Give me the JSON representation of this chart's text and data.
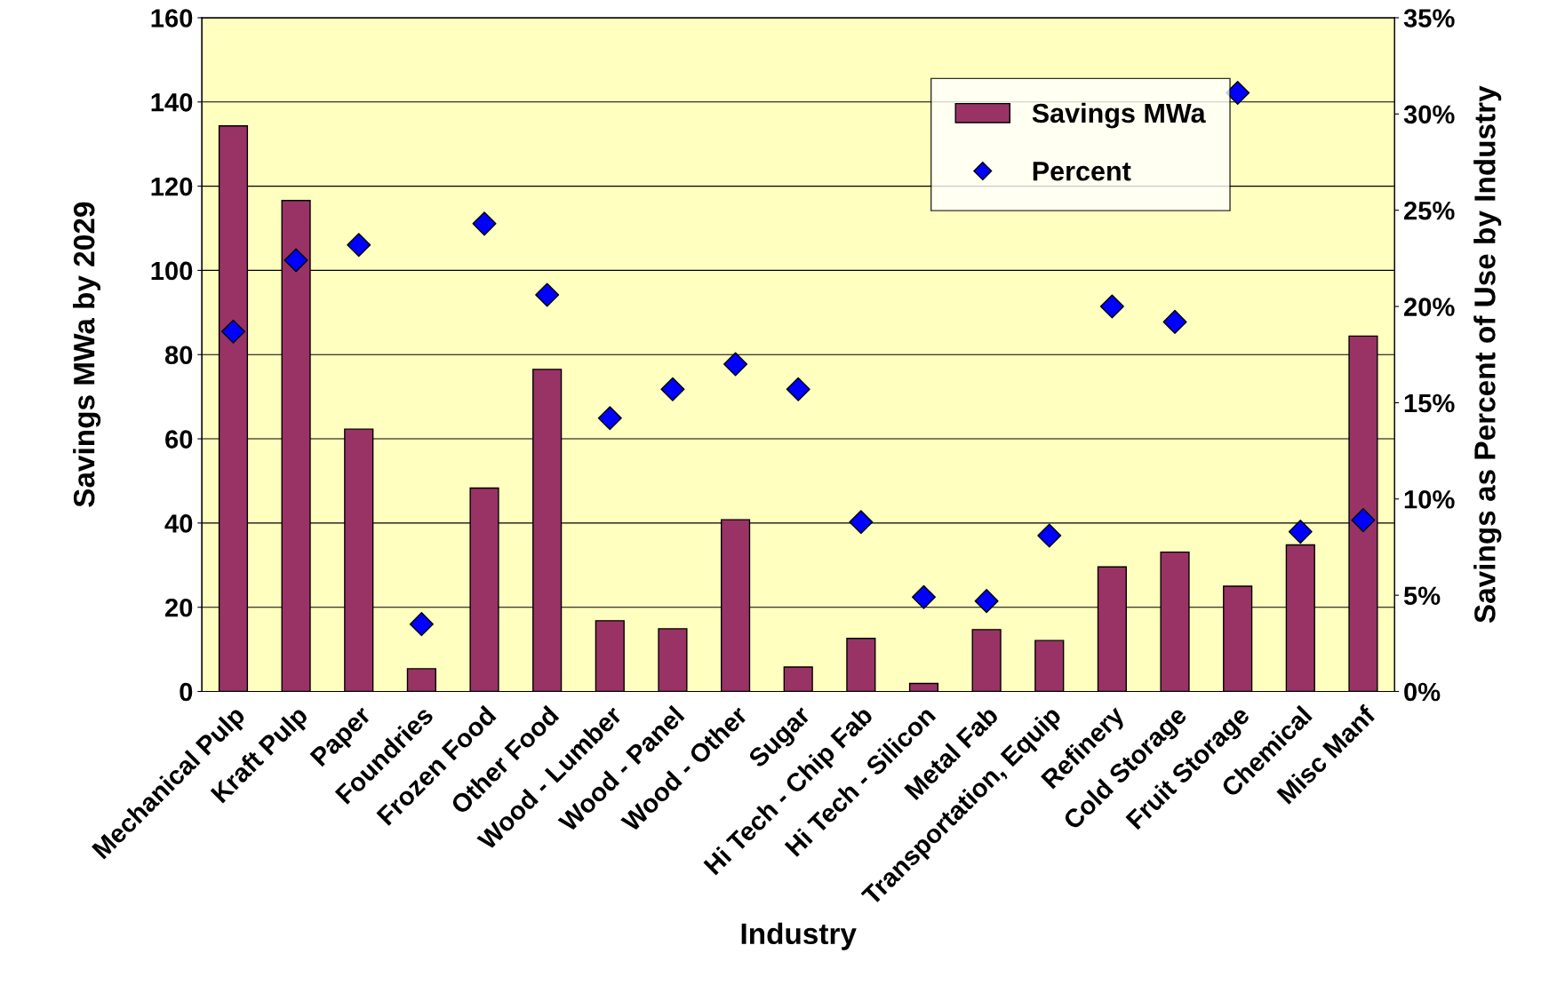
{
  "chart_data": {
    "type": "bar",
    "xlabel": "Industry",
    "ylabel": "Savings MWa by 2029",
    "y2label": "Savings as Percent of Use by Industry",
    "categories": [
      "Mechanical Pulp",
      "Kraft Pulp",
      "Paper",
      "Foundries",
      "Frozen Food",
      "Other Food",
      "Wood - Lumber",
      "Wood - Panel",
      "Wood - Other",
      "Sugar",
      "Hi Tech - Chip Fab",
      "Hi Tech - Silicon",
      "Metal Fab",
      "Transportation, Equip",
      "Refinery",
      "Cold Storage",
      "Fruit Storage",
      "Chemical",
      "Misc Manf"
    ],
    "series": [
      {
        "name": "Savings MWa",
        "color": "#993366",
        "values": [
          134.3,
          116.6,
          62.3,
          5.4,
          48.3,
          76.5,
          16.8,
          14.9,
          40.8,
          5.8,
          12.6,
          1.9,
          14.7,
          12.1,
          29.6,
          33.1,
          25.0,
          34.8,
          84.4
        ]
      },
      {
        "name": "Percent",
        "type": "scatter",
        "axis": "y2",
        "marker": "diamond",
        "color": "#0000ff",
        "values": [
          18.7,
          22.4,
          23.2,
          3.5,
          24.3,
          20.6,
          14.2,
          15.7,
          17.0,
          15.7,
          8.8,
          4.9,
          4.7,
          8.1,
          20.0,
          19.2,
          31.1,
          8.3,
          8.9
        ]
      }
    ],
    "ylim": [
      0,
      160
    ],
    "yticks": [
      0,
      20,
      40,
      60,
      80,
      100,
      120,
      140,
      160
    ],
    "y2lim": [
      0,
      35
    ],
    "y2ticks": [
      {
        "value": 0,
        "label": "0%"
      },
      {
        "value": 5,
        "label": "5%"
      },
      {
        "value": 10,
        "label": "10%"
      },
      {
        "value": 15,
        "label": "15%"
      },
      {
        "value": 20,
        "label": "20%"
      },
      {
        "value": 25,
        "label": "25%"
      },
      {
        "value": 30,
        "label": "30%"
      },
      {
        "value": 35,
        "label": "35%"
      }
    ],
    "grid": "y",
    "legend": "top right"
  }
}
